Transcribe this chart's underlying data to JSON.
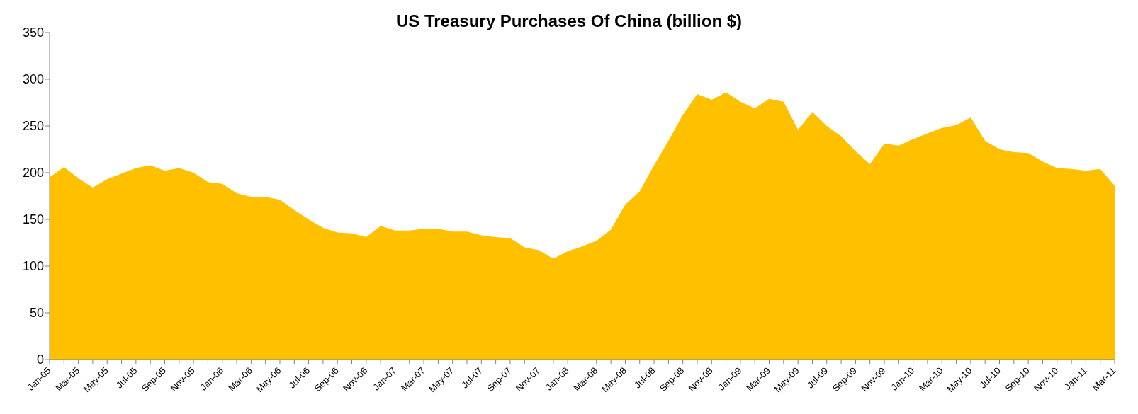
{
  "chart_data": {
    "type": "area",
    "title": "US Treasury Purchases Of China (billion $)",
    "categories": [
      "Jan-05",
      null,
      "Mar-05",
      null,
      "May-05",
      null,
      "Jul-05",
      null,
      "Sep-05",
      null,
      "Nov-05",
      null,
      "Jan-06",
      null,
      "Mar-06",
      null,
      "May-06",
      null,
      "Jul-06",
      null,
      "Sep-06",
      null,
      "Nov-06",
      null,
      "Jan-07",
      null,
      "Mar-07",
      null,
      "May-07",
      null,
      "Jul-07",
      null,
      "Sep-07",
      null,
      "Nov-07",
      null,
      "Jan-08",
      null,
      "Mar-08",
      null,
      "May-08",
      null,
      "Jul-08",
      null,
      "Sep-08",
      null,
      "Nov-08",
      null,
      "Jan-09",
      null,
      "Mar-09",
      null,
      "May-09",
      null,
      "Jul-09",
      null,
      "Sep-09",
      null,
      "Nov-09",
      null,
      "Jan-10",
      null,
      "Mar-10",
      null,
      "May-10",
      null,
      "Jul-10",
      null,
      "Sep-10",
      null,
      "Nov-10",
      null,
      "Jan-11",
      null,
      "Mar-11"
    ],
    "values": [
      195,
      206,
      194,
      184,
      193,
      199,
      205,
      208,
      202,
      205,
      200,
      190,
      188,
      178,
      174,
      174,
      171,
      160,
      150,
      141,
      136,
      135,
      131,
      143,
      138,
      138,
      140,
      140,
      137,
      137,
      133,
      131,
      130,
      120,
      117,
      108,
      116,
      121,
      127,
      139,
      166,
      180,
      208,
      234,
      262,
      284,
      278,
      286,
      276,
      269,
      279,
      276,
      246,
      265,
      250,
      239,
      223,
      209,
      231,
      229,
      236,
      242,
      248,
      251,
      259,
      234,
      225,
      222,
      221,
      212,
      205,
      204,
      202,
      204,
      186
    ],
    "color": "#ffc000",
    "ylim": [
      0,
      350
    ],
    "yticks": [
      0,
      50,
      100,
      150,
      200,
      250,
      300,
      350
    ],
    "grid": false,
    "legend": false
  }
}
